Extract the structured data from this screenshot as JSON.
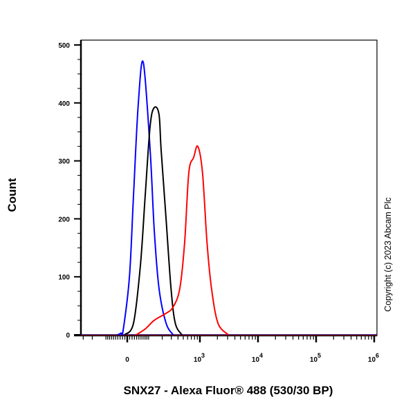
{
  "chart_data": {
    "type": "line",
    "xlabel": "SNX27 - Alexa Fluor® 488 (530/30 BP)",
    "ylabel": "Count",
    "x_scale": "biexponential",
    "ylim": [
      0,
      500
    ],
    "yticks": [
      "0",
      "100",
      "200",
      "300",
      "400",
      "500"
    ],
    "xticks": [
      {
        "value": 0,
        "base": "0",
        "exp": ""
      },
      {
        "value": 1000,
        "base": "10",
        "exp": "3"
      },
      {
        "value": 10000,
        "base": "10",
        "exp": "4"
      },
      {
        "value": 100000,
        "base": "10",
        "exp": "5"
      },
      {
        "value": 1000000,
        "base": "10",
        "exp": "6"
      }
    ],
    "grid": false,
    "series": [
      {
        "color": "#0000ff",
        "x": [
          -41,
          -26,
          -17,
          9,
          26,
          47,
          71,
          109,
          136,
          172,
          238,
          325
        ],
        "y": [
          0,
          3,
          8,
          100,
          240,
          398,
          470,
          319,
          180,
          80,
          20,
          0
        ]
      },
      {
        "color": "#000000",
        "x": [
          -11,
          26,
          57,
          81,
          109,
          136,
          172,
          190,
          238,
          296,
          356,
          472
        ],
        "y": [
          0,
          20,
          120,
          240,
          360,
          392,
          380,
          319,
          200,
          80,
          20,
          0
        ]
      },
      {
        "color": "#ff0000",
        "x": [
          38,
          81,
          136,
          238,
          325,
          432,
          530,
          631,
          772,
          916,
          1108,
          1324,
          1585,
          2047,
          3083
        ],
        "y": [
          0,
          10,
          25,
          37,
          48,
          80,
          160,
          280,
          306,
          325,
          280,
          160,
          80,
          20,
          0
        ]
      }
    ]
  },
  "copyright": "Copyright (c) 2023 Abcam Plc"
}
